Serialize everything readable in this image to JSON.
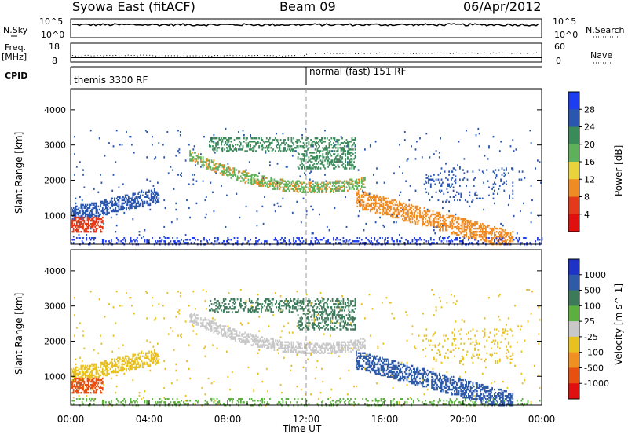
{
  "header": {
    "station": "Syowa East (fitACF)",
    "beam": "Beam 09",
    "date": "06/Apr/2012"
  },
  "strip_panels": {
    "nsky_label": "N.Sky",
    "nsky_top": "10^5",
    "nsky_bottom": "10^0",
    "nsearch_label": "N.Search",
    "nsearch_top": "10^5",
    "nsearch_bottom": "10^0",
    "freq_label_1": "Freq.",
    "freq_label_2": "[MHz]",
    "freq_top": "18",
    "freq_bottom": "8",
    "nave_label": "Nave",
    "nave_top": "60",
    "nave_bottom": "0",
    "cpid_label": "CPID",
    "cpid_mode_1": "themis 3300 RF",
    "cpid_mode_2": "normal (fast) 151 RF"
  },
  "chart_data": [
    {
      "type": "heatmap",
      "name": "power",
      "ylabel": "Slant Range [km]",
      "xlabel": "Time UT",
      "x_ticks": [
        "00:00",
        "04:00",
        "08:00",
        "12:00",
        "16:00",
        "20:00",
        "00:00"
      ],
      "x_tick_hours": [
        0,
        4,
        8,
        12,
        16,
        20,
        24
      ],
      "y_ticks": [
        "1000",
        "2000",
        "3000",
        "4000"
      ],
      "y_tick_values": [
        1000,
        2000,
        3000,
        4000
      ],
      "ylim": [
        180,
        4600
      ],
      "xlim_hours": [
        0,
        24
      ],
      "colorbar_label": "Power [dB]",
      "colorbar_ticks": [
        "4",
        "8",
        "12",
        "16",
        "20",
        "24",
        "28"
      ],
      "colorbar_colors": [
        "#1e3cf0",
        "#2a56b0",
        "#3b8a5a",
        "#5fb05a",
        "#e8d43a",
        "#f08a22",
        "#e53a1a",
        "#e01010"
      ]
    },
    {
      "type": "heatmap",
      "name": "velocity",
      "ylabel": "Slant Range [km]",
      "xlabel": "Time UT",
      "x_ticks": [
        "00:00",
        "04:00",
        "08:00",
        "12:00",
        "16:00",
        "20:00",
        "00:00"
      ],
      "x_tick_hours": [
        0,
        4,
        8,
        12,
        16,
        20,
        24
      ],
      "y_ticks": [
        "1000",
        "2000",
        "3000",
        "4000"
      ],
      "y_tick_values": [
        1000,
        2000,
        3000,
        4000
      ],
      "ylim": [
        180,
        4600
      ],
      "xlim_hours": [
        0,
        24
      ],
      "colorbar_label": "Velocity [m s^-1]",
      "colorbar_ticks": [
        "1000",
        "500",
        "100",
        "25",
        "-25",
        "-100",
        "-500",
        "-1000"
      ],
      "colorbar_colors": [
        "#1e32c8",
        "#2f5aa8",
        "#3c7a5a",
        "#5cb040",
        "#c8c8c8",
        "#e8c020",
        "#f09020",
        "#e85010",
        "#e01010"
      ]
    }
  ]
}
